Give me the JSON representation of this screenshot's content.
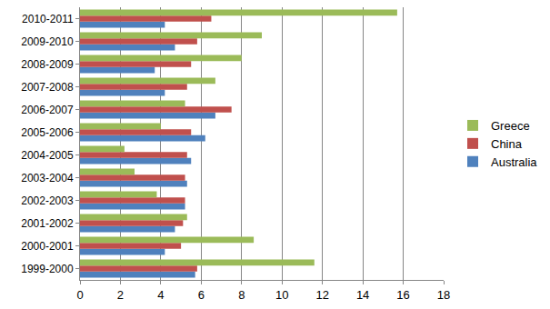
{
  "chart_data": {
    "type": "bar",
    "orientation": "horizontal",
    "categories": [
      "1999-2000",
      "2000-2001",
      "2001-2002",
      "2002-2003",
      "2003-2004",
      "2004-2005",
      "2005-2006",
      "2006-2007",
      "2007-2008",
      "2008-2009",
      "2009-2010",
      "2010-2011"
    ],
    "series": [
      {
        "name": "Greece",
        "color": "#9bbb59",
        "values": [
          11.6,
          8.6,
          5.3,
          3.8,
          2.7,
          2.2,
          4.0,
          5.2,
          6.7,
          8.0,
          9.0,
          15.7
        ]
      },
      {
        "name": "China",
        "color": "#c0504d",
        "values": [
          5.8,
          5.0,
          5.1,
          5.2,
          5.2,
          5.3,
          5.5,
          7.5,
          5.3,
          5.5,
          5.8,
          6.5
        ]
      },
      {
        "name": "Australia",
        "color": "#4f81bd",
        "values": [
          5.7,
          4.2,
          4.7,
          5.2,
          5.3,
          5.5,
          6.2,
          6.7,
          4.2,
          3.7,
          4.7,
          4.2
        ]
      }
    ],
    "xlim": [
      0,
      18
    ],
    "xticks": [
      0,
      2,
      4,
      6,
      8,
      10,
      12,
      14,
      16,
      18
    ],
    "grid": true,
    "legend": "right"
  }
}
